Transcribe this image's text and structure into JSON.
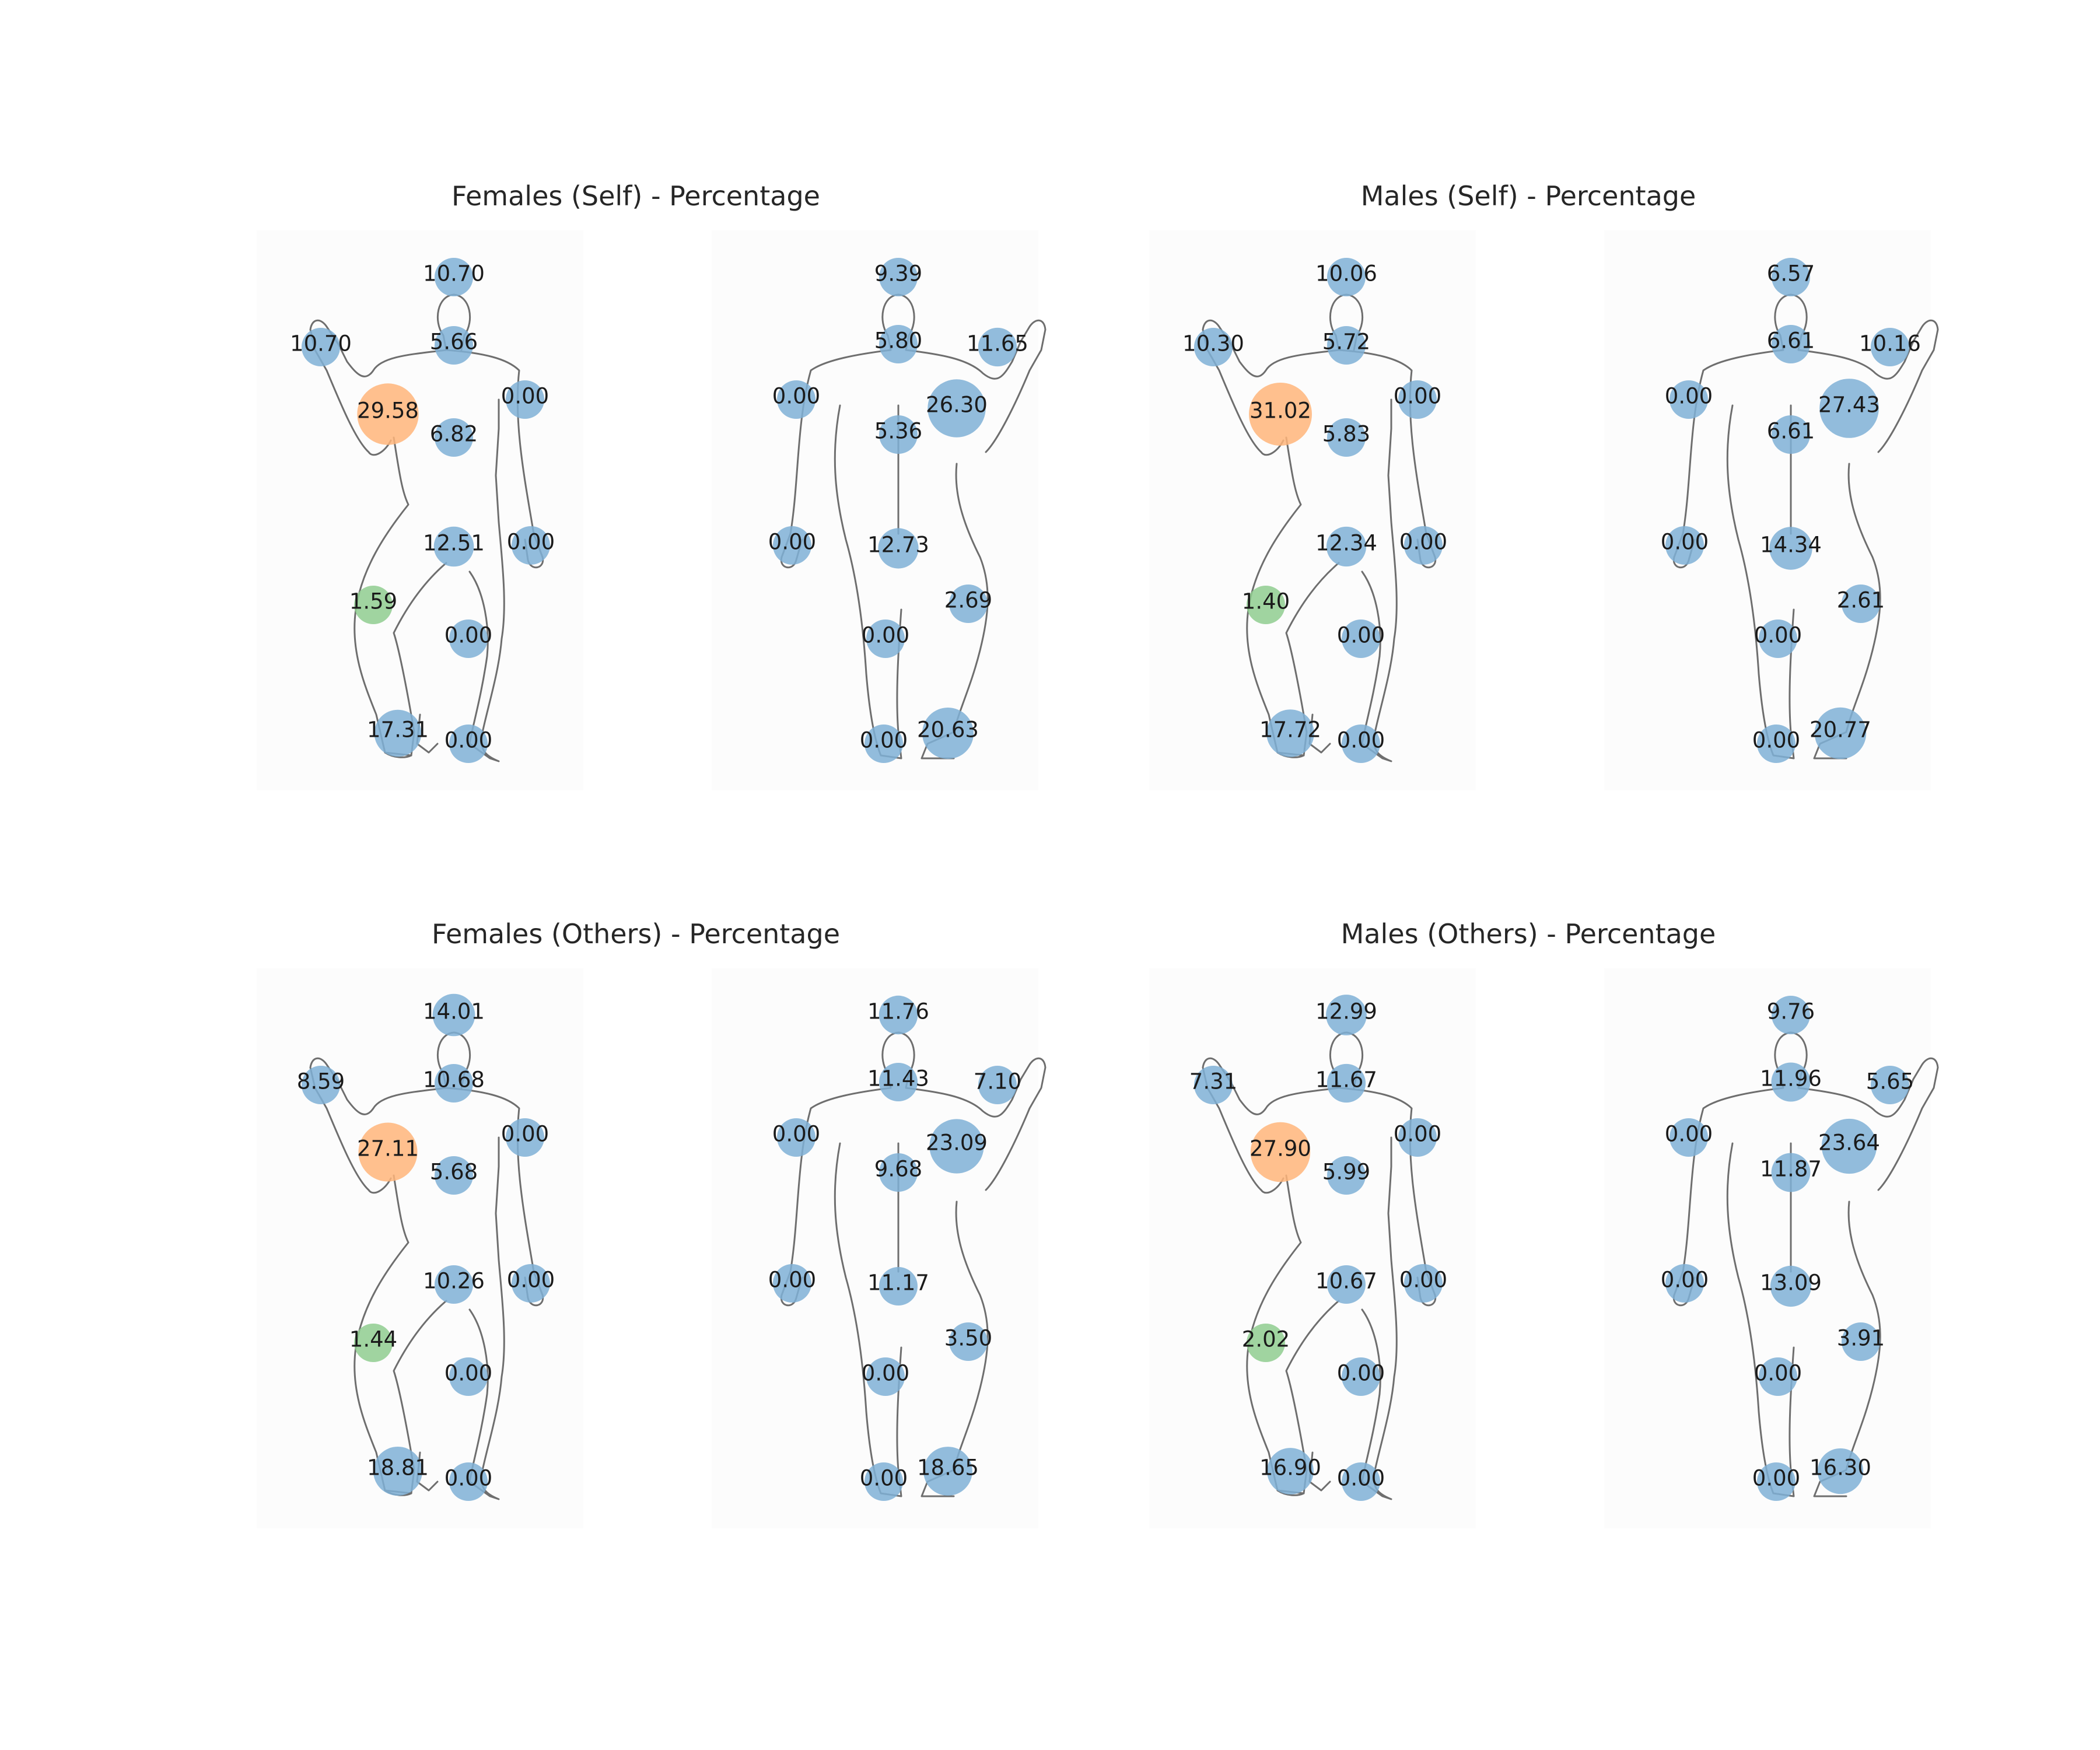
{
  "chart_data": [
    {
      "type": "scatter",
      "title": "Females (Self) - Percentage",
      "front": {
        "head": "10.70",
        "neck": "5.66",
        "upper_arm": "29.58",
        "hand": "10.70",
        "chest": "6.82",
        "far_arm": "0.00",
        "far_hand": "0.00",
        "groin": "12.51",
        "thigh": "1.59",
        "knee": "0.00",
        "foot": "17.31",
        "far_foot": "0.00"
      },
      "back": {
        "head": "9.39",
        "neck": "5.80",
        "hand": "11.65",
        "near_arm": "0.00",
        "back": "5.36",
        "upper_arm": "26.30",
        "near_hand": "0.00",
        "buttocks": "12.73",
        "calf": "2.69",
        "near_knee": "0.00",
        "near_foot": "0.00",
        "foot": "20.63"
      }
    },
    {
      "type": "scatter",
      "title": "Males (Self) - Percentage",
      "front": {
        "head": "10.06",
        "neck": "5.72",
        "upper_arm": "31.02",
        "hand": "10.30",
        "chest": "5.83",
        "far_arm": "0.00",
        "far_hand": "0.00",
        "groin": "12.34",
        "thigh": "1.40",
        "knee": "0.00",
        "foot": "17.72",
        "far_foot": "0.00"
      },
      "back": {
        "head": "6.57",
        "neck": "6.61",
        "hand": "10.16",
        "near_arm": "0.00",
        "back": "6.61",
        "upper_arm": "27.43",
        "near_hand": "0.00",
        "buttocks": "14.34",
        "calf": "2.61",
        "near_knee": "0.00",
        "near_foot": "0.00",
        "foot": "20.77"
      }
    },
    {
      "type": "scatter",
      "title": "Females (Others) - Percentage",
      "front": {
        "head": "14.01",
        "neck": "10.68",
        "upper_arm": "27.11",
        "hand": "8.59",
        "chest": "5.68",
        "far_arm": "0.00",
        "far_hand": "0.00",
        "groin": "10.26",
        "thigh": "1.44",
        "knee": "0.00",
        "foot": "18.81",
        "far_foot": "0.00"
      },
      "back": {
        "head": "11.76",
        "neck": "11.43",
        "hand": "7.10",
        "near_arm": "0.00",
        "back": "9.68",
        "upper_arm": "23.09",
        "near_hand": "0.00",
        "buttocks": "11.17",
        "calf": "3.50",
        "near_knee": "0.00",
        "near_foot": "0.00",
        "foot": "18.65"
      }
    },
    {
      "type": "scatter",
      "title": "Males (Others) - Percentage",
      "front": {
        "head": "12.99",
        "neck": "11.67",
        "upper_arm": "27.90",
        "hand": "7.31",
        "chest": "5.99",
        "far_arm": "0.00",
        "far_hand": "0.00",
        "groin": "10.67",
        "thigh": "2.02",
        "knee": "0.00",
        "foot": "16.90",
        "far_foot": "0.00"
      },
      "back": {
        "head": "9.76",
        "neck": "11.96",
        "hand": "5.65",
        "near_arm": "0.00",
        "back": "11.87",
        "upper_arm": "23.64",
        "near_hand": "0.00",
        "buttocks": "13.09",
        "calf": "3.91",
        "near_knee": "0.00",
        "near_foot": "0.00",
        "foot": "16.30"
      }
    }
  ],
  "colors": {
    "default": "#7fb0d6",
    "max": "#ffb57a",
    "min": "#8fcd8f",
    "outline": "#6e6e6e"
  }
}
